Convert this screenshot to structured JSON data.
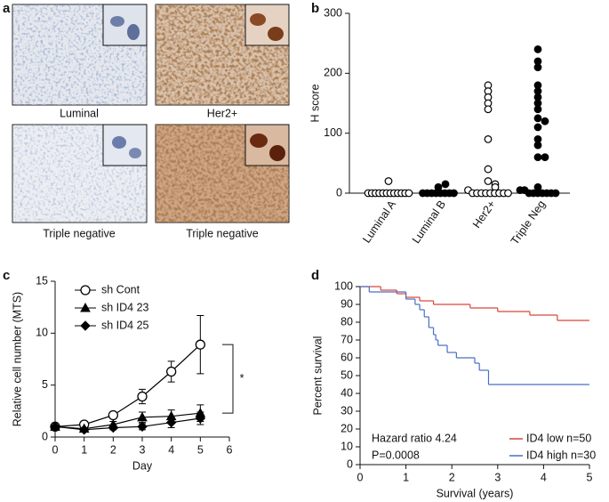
{
  "images_panel": {
    "panel_label": "a",
    "captions": [
      "Luminal",
      "Her2+",
      "Triple negative",
      "Triple negative"
    ]
  },
  "chart_data": [
    {
      "type": "strip",
      "panel_label": "b",
      "ylabel": "H score",
      "categories": [
        "Luminal A",
        "Luminal B",
        "Her2+",
        "Triple Neg"
      ],
      "groups": [
        {
          "filled": false,
          "values": [
            20,
            0,
            0,
            0,
            0,
            0,
            0,
            0,
            0,
            0,
            0,
            0,
            0
          ]
        },
        {
          "filled": true,
          "values": [
            10,
            15,
            0,
            0,
            0,
            0,
            0,
            0,
            0,
            0
          ]
        },
        {
          "filled": false,
          "values": [
            180,
            170,
            160,
            150,
            140,
            90,
            40,
            20,
            15,
            10,
            5,
            0,
            0,
            0,
            0,
            0,
            0,
            0,
            0,
            0
          ]
        },
        {
          "filled": true,
          "values": [
            240,
            220,
            210,
            180,
            170,
            160,
            150,
            140,
            125,
            120,
            110,
            90,
            80,
            60,
            60,
            10,
            5,
            5,
            0,
            0,
            0,
            0,
            0,
            0,
            0
          ]
        }
      ],
      "ylim": [
        0,
        300
      ],
      "yticks": [
        0,
        100,
        200,
        300
      ]
    },
    {
      "type": "line",
      "panel_label": "c",
      "xlabel": "Day",
      "ylabel": "Relative cell number (MTS)",
      "x": [
        0,
        1,
        2,
        3,
        4,
        5
      ],
      "series": [
        {
          "name": "sh Cont",
          "marker": "circle-open",
          "color": "#000000",
          "values": [
            1,
            1.2,
            2.1,
            3.9,
            6.3,
            8.9
          ],
          "errors": [
            0,
            0.1,
            0.2,
            0.7,
            1.0,
            2.8
          ]
        },
        {
          "name": "sh ID4 23",
          "marker": "triangle",
          "color": "#000000",
          "values": [
            1,
            0.8,
            1.2,
            1.9,
            2.0,
            2.3
          ],
          "errors": [
            0,
            0.1,
            0.3,
            0.5,
            0.6,
            0.8
          ]
        },
        {
          "name": "sh ID4 25",
          "marker": "diamond",
          "color": "#000000",
          "values": [
            1,
            0.7,
            0.9,
            1.0,
            1.4,
            1.8
          ],
          "errors": [
            0,
            0.1,
            0.2,
            0.3,
            0.5,
            0.6
          ]
        }
      ],
      "annotation": "*",
      "xlim": [
        0,
        6
      ],
      "xticks": [
        0,
        1,
        2,
        3,
        4,
        5,
        6
      ],
      "ylim": [
        0,
        15
      ],
      "yticks": [
        0,
        5,
        10,
        15
      ]
    },
    {
      "type": "step",
      "panel_label": "d",
      "xlabel": "Survival (years)",
      "ylabel": "Percent survival",
      "series": [
        {
          "name": "ID4 low n=50",
          "color": "#d9463a",
          "x": [
            0,
            0.45,
            0.8,
            1.0,
            1.3,
            1.6,
            2.4,
            3.0,
            3.7,
            4.3
          ],
          "values": [
            100,
            98,
            96,
            94,
            92,
            90,
            88,
            86,
            84,
            81
          ]
        },
        {
          "name": "ID4 high n=30",
          "color": "#4a6fc4",
          "x": [
            0,
            0.2,
            1.0,
            1.2,
            1.3,
            1.4,
            1.5,
            1.6,
            1.65,
            1.7,
            1.9,
            2.1,
            2.5,
            2.6,
            2.8
          ],
          "values": [
            100,
            97,
            93,
            90,
            87,
            83,
            77,
            73,
            70,
            67,
            63,
            60,
            57,
            53,
            45
          ]
        }
      ],
      "annotations": [
        "Hazard ratio 4.24",
        "P=0.0008"
      ],
      "xlim": [
        0,
        5
      ],
      "xticks": [
        0,
        1,
        2,
        3,
        4,
        5
      ],
      "ylim": [
        0,
        100
      ],
      "yticks": [
        0,
        10,
        20,
        30,
        40,
        50,
        60,
        70,
        80,
        90,
        100
      ]
    }
  ]
}
